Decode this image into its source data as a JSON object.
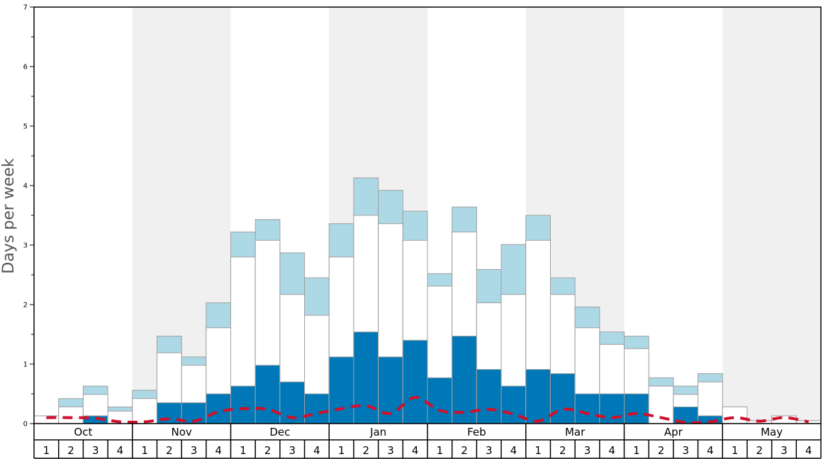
{
  "chart_data": {
    "type": "bar",
    "ylabel": "Days per week",
    "ylim": [
      0,
      7
    ],
    "yticks": [
      "0",
      "1",
      "2",
      "3",
      "4",
      "5",
      "6",
      "7"
    ],
    "months": [
      "Oct",
      "Nov",
      "Dec",
      "Jan",
      "Feb",
      "Mar",
      "Apr",
      "May"
    ],
    "weeks": [
      "1",
      "2",
      "3",
      "4"
    ],
    "colors": {
      "dark_segment": "#0077b6",
      "light_segment": "#add8e6",
      "outline_segment": "#ffffff",
      "dashed_line": "#d0102a",
      "shade_band": "#f0f0f0"
    },
    "series": [
      {
        "values": [
          0.0,
          0.0,
          0.13,
          0.0,
          0.0,
          0.35,
          0.35,
          0.5,
          0.63,
          0.98,
          0.7,
          0.5,
          1.12,
          1.54,
          1.12,
          1.4,
          0.77,
          1.47,
          0.91,
          0.63,
          0.91,
          0.84,
          0.5,
          0.5,
          0.5,
          0.0,
          0.28,
          0.13,
          0.0,
          0.0,
          0.0,
          0.0
        ]
      },
      {
        "values": [
          0.13,
          0.28,
          0.49,
          0.21,
          0.42,
          1.19,
          0.98,
          1.61,
          2.8,
          3.08,
          2.17,
          1.82,
          2.8,
          3.5,
          3.36,
          3.08,
          2.31,
          3.22,
          2.03,
          2.17,
          3.08,
          2.17,
          1.61,
          1.33,
          1.26,
          0.63,
          0.49,
          0.7,
          0.28,
          0.05,
          0.13,
          0.05
        ]
      },
      {
        "values": [
          0.13,
          0.42,
          0.63,
          0.28,
          0.56,
          1.47,
          1.12,
          2.03,
          3.22,
          3.43,
          2.87,
          2.45,
          3.36,
          4.13,
          3.92,
          3.57,
          2.52,
          3.64,
          2.59,
          3.01,
          3.5,
          2.45,
          1.96,
          1.54,
          1.47,
          0.77,
          0.63,
          0.84,
          0.28,
          0.05,
          0.13,
          0.05
        ]
      },
      {
        "values": [
          0.1,
          0.1,
          0.09,
          0.03,
          0.03,
          0.08,
          0.04,
          0.2,
          0.25,
          0.24,
          0.1,
          0.17,
          0.25,
          0.3,
          0.17,
          0.44,
          0.22,
          0.19,
          0.24,
          0.16,
          0.04,
          0.24,
          0.17,
          0.1,
          0.17,
          0.1,
          0.02,
          0.03,
          0.1,
          0.04,
          0.1,
          0.03
        ]
      }
    ]
  }
}
